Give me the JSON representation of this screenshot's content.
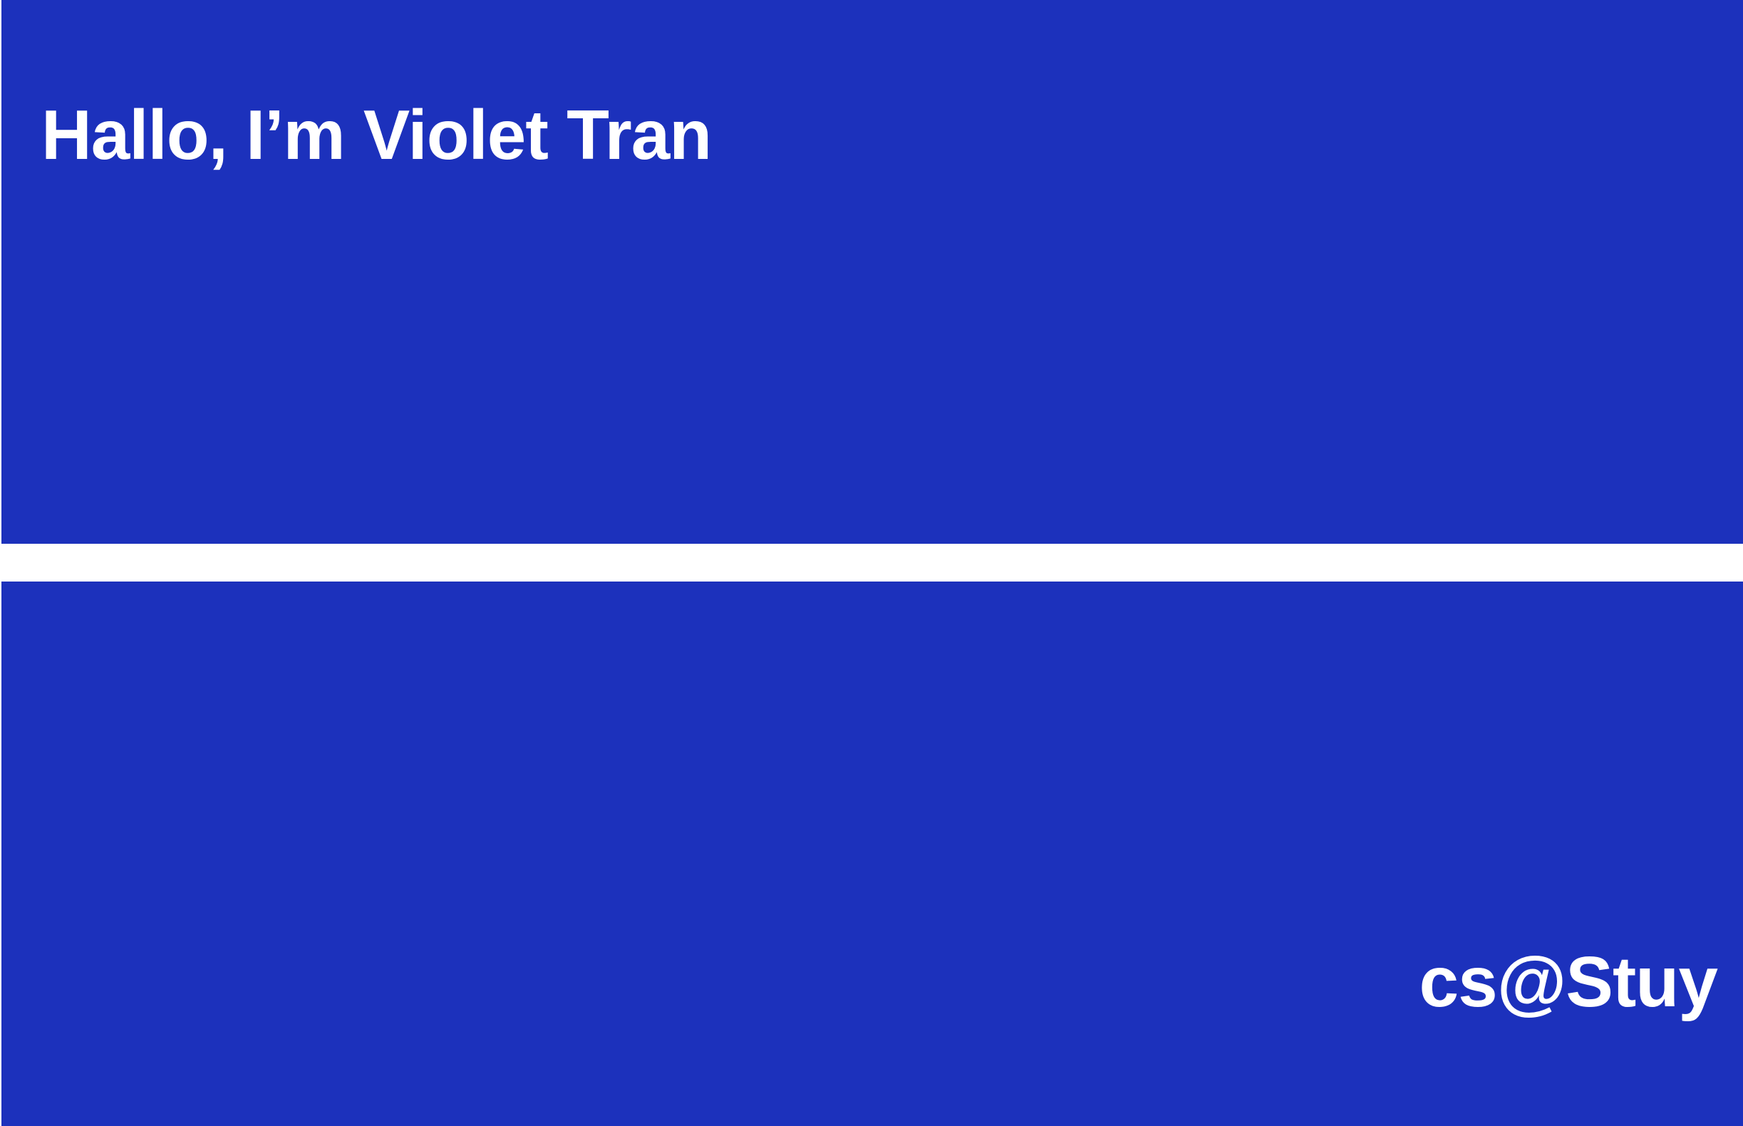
{
  "header": {
    "title": "Hallo, I’m Violet Tran"
  },
  "footer": {
    "label": "cs@Stuy"
  }
}
